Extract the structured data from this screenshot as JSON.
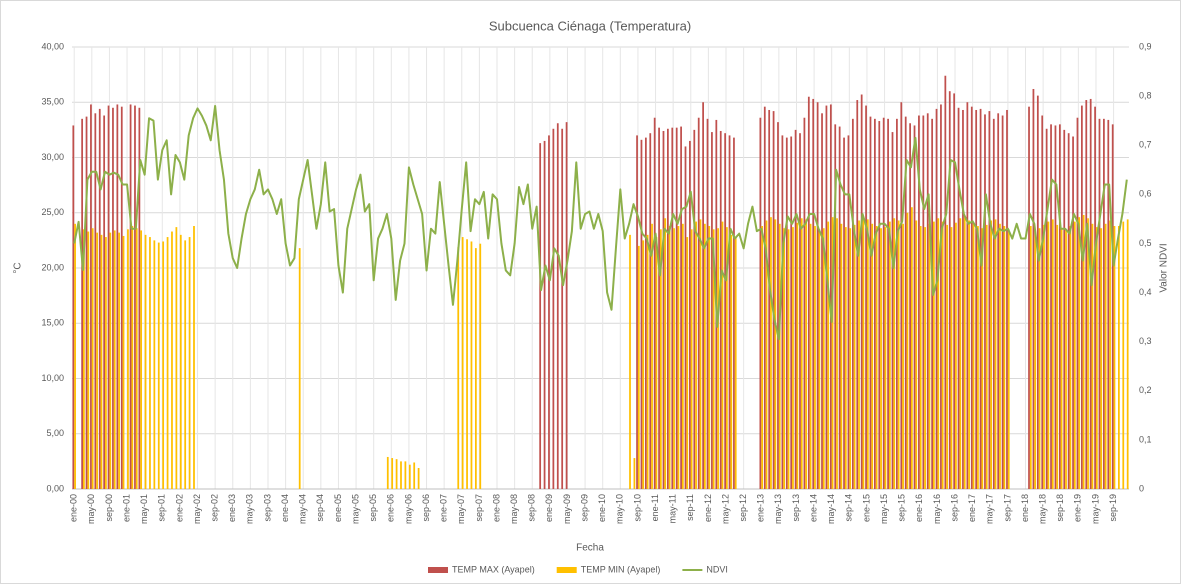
{
  "chart_data": {
    "type": "bar",
    "title": "Subcuenca Ciénaga (Temperatura)",
    "x_label": "Fecha",
    "y_label": "°C",
    "y2_label": "Valor NDVI",
    "categories": [
      "ene-00",
      null,
      null,
      null,
      "may-00",
      null,
      null,
      null,
      "sep-00",
      null,
      null,
      null,
      "ene-01",
      null,
      null,
      null,
      "may-01",
      null,
      null,
      null,
      "sep-01",
      null,
      null,
      null,
      "ene-02",
      null,
      null,
      null,
      "may-02",
      null,
      null,
      null,
      "sep-02",
      null,
      null,
      null,
      "ene-03",
      null,
      null,
      null,
      "may-03",
      null,
      null,
      null,
      "sep-03",
      null,
      null,
      null,
      "ene-04",
      null,
      null,
      null,
      "may-04",
      null,
      null,
      null,
      "sep-04",
      null,
      null,
      null,
      "ene-05",
      null,
      null,
      null,
      "may-05",
      null,
      null,
      null,
      "sep-05",
      null,
      null,
      null,
      "ene-06",
      null,
      null,
      null,
      "may-06",
      null,
      null,
      null,
      "sep-06",
      null,
      null,
      null,
      "ene-07",
      null,
      null,
      null,
      "may-07",
      null,
      null,
      null,
      "sep-07",
      null,
      null,
      null,
      "ene-08",
      null,
      null,
      null,
      "may-08",
      null,
      null,
      null,
      "sep-08",
      null,
      null,
      null,
      "ene-09",
      null,
      null,
      null,
      "may-09",
      null,
      null,
      null,
      "sep-09",
      null,
      null,
      null,
      "ene-10",
      null,
      null,
      null,
      "may-10",
      null,
      null,
      null,
      "sep-10",
      null,
      null,
      null,
      "ene-11",
      null,
      null,
      null,
      "may-11",
      null,
      null,
      null,
      "sep-11",
      null,
      null,
      null,
      "ene-12",
      null,
      null,
      null,
      "may-12",
      null,
      null,
      null,
      "sep-12",
      null,
      null,
      null,
      "ene-13",
      null,
      null,
      null,
      "may-13",
      null,
      null,
      null,
      "sep-13",
      null,
      null,
      null,
      "ene-14",
      null,
      null,
      null,
      "may-14",
      null,
      null,
      null,
      "sep-14",
      null,
      null,
      null,
      "ene-15",
      null,
      null,
      null,
      "may-15",
      null,
      null,
      null,
      "sep-15",
      null,
      null,
      null,
      "ene-16",
      null,
      null,
      null,
      "may-16",
      null,
      null,
      null,
      "sep-16",
      null,
      null,
      null,
      "ene-17",
      null,
      null,
      null,
      "may-17",
      null,
      null,
      null,
      "sep-17",
      null,
      null,
      null,
      "ene-18",
      null,
      null,
      null,
      "may-18",
      null,
      null,
      null,
      "sep-18",
      null,
      null,
      null,
      "ene-19",
      null,
      null,
      null,
      "may-19",
      null,
      null,
      null,
      "sep-19",
      null,
      null,
      null
    ],
    "series": [
      {
        "name": "TEMP MAX (Ayapel)",
        "color": "#c0504d",
        "values": [
          32.9,
          null,
          33.5,
          33.7,
          34.8,
          34.0,
          34.4,
          33.8,
          34.7,
          34.5,
          34.8,
          34.6,
          null,
          34.8,
          34.7,
          34.5,
          null,
          null,
          null,
          null,
          null,
          null,
          null,
          null,
          null,
          null,
          null,
          null,
          null,
          null,
          null,
          null,
          null,
          null,
          null,
          null,
          null,
          null,
          null,
          null,
          null,
          null,
          null,
          null,
          null,
          null,
          null,
          null,
          null,
          null,
          null,
          null,
          null,
          null,
          null,
          null,
          null,
          null,
          null,
          null,
          null,
          null,
          null,
          null,
          null,
          null,
          null,
          null,
          null,
          null,
          null,
          null,
          null,
          null,
          null,
          null,
          null,
          null,
          null,
          null,
          null,
          null,
          null,
          null,
          null,
          null,
          null,
          null,
          null,
          null,
          null,
          null,
          null,
          null,
          null,
          null,
          null,
          null,
          null,
          null,
          null,
          null,
          null,
          null,
          null,
          null,
          31.3,
          31.5,
          32.0,
          32.6,
          33.1,
          32.6,
          33.2,
          null,
          null,
          null,
          null,
          null,
          null,
          null,
          null,
          null,
          null,
          null,
          null,
          null,
          null,
          null,
          32.0,
          31.6,
          31.8,
          32.2,
          33.6,
          32.7,
          32.4,
          32.6,
          32.7,
          32.7,
          32.8,
          31.0,
          31.5,
          32.5,
          33.6,
          35.0,
          33.5,
          32.3,
          33.4,
          32.4,
          32.2,
          32.0,
          31.8,
          null,
          null,
          null,
          null,
          null,
          33.6,
          34.6,
          34.3,
          34.2,
          33.2,
          32.0,
          31.8,
          31.9,
          32.5,
          32.2,
          33.6,
          35.5,
          35.3,
          35.0,
          34.0,
          34.7,
          34.8,
          33.0,
          32.8,
          31.8,
          32.0,
          33.5,
          35.2,
          35.7,
          34.7,
          33.7,
          33.5,
          33.3,
          33.6,
          33.5,
          32.3,
          33.5,
          35.0,
          33.7,
          33.1,
          32.9,
          33.8,
          33.8,
          34.0,
          33.5,
          34.4,
          34.8,
          37.4,
          36.0,
          35.8,
          34.5,
          34.3,
          35.0,
          34.6,
          34.3,
          34.4,
          33.9,
          34.2,
          33.5,
          34.0,
          33.8,
          34.3,
          null,
          null,
          null,
          null,
          34.6,
          36.2,
          35.6,
          33.8,
          32.6,
          33.0,
          32.9,
          33.0,
          32.5,
          32.2,
          31.9,
          33.6,
          34.7,
          35.2,
          35.3,
          34.6,
          33.5,
          33.5,
          33.4,
          33.0,
          null,
          null,
          null
        ]
      },
      {
        "name": "TEMP MIN (Ayapel)",
        "color": "#ffc000",
        "values": [
          24.0,
          null,
          23.5,
          23.3,
          23.6,
          23.2,
          23.0,
          22.8,
          23.2,
          23.4,
          23.2,
          22.9,
          23.5,
          23.8,
          23.6,
          23.4,
          23.0,
          22.8,
          22.5,
          22.3,
          22.4,
          22.8,
          23.3,
          23.7,
          23.0,
          22.5,
          22.8,
          23.8,
          null,
          null,
          null,
          null,
          null,
          null,
          null,
          null,
          null,
          null,
          null,
          null,
          null,
          null,
          null,
          null,
          null,
          null,
          null,
          null,
          null,
          null,
          null,
          21.8,
          null,
          null,
          null,
          null,
          null,
          null,
          null,
          null,
          null,
          null,
          null,
          null,
          null,
          null,
          null,
          null,
          null,
          null,
          null,
          2.9,
          2.8,
          2.7,
          2.5,
          2.5,
          2.2,
          2.4,
          1.9,
          null,
          null,
          null,
          null,
          null,
          null,
          null,
          null,
          21.9,
          22.8,
          22.6,
          22.4,
          21.8,
          22.2,
          null,
          null,
          null,
          null,
          null,
          null,
          null,
          null,
          null,
          null,
          null,
          null,
          null,
          null,
          null,
          null,
          null,
          null,
          null,
          null,
          null,
          null,
          null,
          null,
          null,
          null,
          null,
          null,
          null,
          null,
          null,
          null,
          null,
          23.0,
          2.8,
          22.0,
          22.5,
          23.0,
          24.0,
          22.8,
          23.5,
          24.5,
          23.8,
          23.6,
          23.8,
          24.0,
          22.8,
          23.5,
          24.2,
          24.4,
          24.0,
          23.8,
          23.5,
          23.6,
          24.2,
          23.7,
          23.0,
          22.8,
          null,
          null,
          null,
          null,
          null,
          23.8,
          24.3,
          24.6,
          24.4,
          24.0,
          23.6,
          23.5,
          23.7,
          24.1,
          24.5,
          24.4,
          24.0,
          23.8,
          23.5,
          23.6,
          24.2,
          24.6,
          24.5,
          24.0,
          23.7,
          23.6,
          23.9,
          24.3,
          24.6,
          24.4,
          24.0,
          23.8,
          23.6,
          23.7,
          24.2,
          24.5,
          24.3,
          24.0,
          25.0,
          25.5,
          24.3,
          23.8,
          23.7,
          24.0,
          24.2,
          24.5,
          24.2,
          23.9,
          23.7,
          24.1,
          24.5,
          24.6,
          24.3,
          24.0,
          23.8,
          23.6,
          23.9,
          24.3,
          24.4,
          24.0,
          23.8,
          23.5,
          null,
          null,
          null,
          null,
          23.8,
          23.4,
          23.6,
          23.9,
          24.2,
          24.4,
          23.9,
          23.6,
          23.5,
          23.8,
          24.2,
          24.6,
          24.8,
          24.5,
          24.0,
          23.7,
          23.6,
          24.0,
          24.3,
          23.8,
          23.8,
          24.2,
          24.4
        ]
      },
      {
        "name": "NDVI",
        "color": "#8db04a",
        "type": "line",
        "axis": "y2",
        "values": [
          0.5,
          0.544,
          0.446,
          0.63,
          0.646,
          0.646,
          0.61,
          0.646,
          0.64,
          0.644,
          0.64,
          0.62,
          0.62,
          0.53,
          0.53,
          0.67,
          0.64,
          0.755,
          0.75,
          0.63,
          0.69,
          0.71,
          0.6,
          0.68,
          0.665,
          0.63,
          0.72,
          0.755,
          0.775,
          0.76,
          0.74,
          0.71,
          0.78,
          0.69,
          0.63,
          0.52,
          0.47,
          0.45,
          0.51,
          0.56,
          0.59,
          0.61,
          0.65,
          0.6,
          0.61,
          0.59,
          0.56,
          0.59,
          0.5,
          0.455,
          0.47,
          0.59,
          0.63,
          0.67,
          0.6,
          0.53,
          0.58,
          0.665,
          0.565,
          0.57,
          0.455,
          0.4,
          0.53,
          0.57,
          0.61,
          0.64,
          0.565,
          0.58,
          0.425,
          0.51,
          0.53,
          0.56,
          0.51,
          0.385,
          0.465,
          0.5,
          0.655,
          0.62,
          0.59,
          0.56,
          0.445,
          0.53,
          0.52,
          0.625,
          0.54,
          0.455,
          0.375,
          0.465,
          0.57,
          0.665,
          0.525,
          0.59,
          0.58,
          0.605,
          0.51,
          0.6,
          0.59,
          0.5,
          0.445,
          0.435,
          0.5,
          0.615,
          0.58,
          0.62,
          0.53,
          0.575,
          0.405,
          0.455,
          0.425,
          0.49,
          0.475,
          0.415,
          0.465,
          0.525,
          0.665,
          0.53,
          0.56,
          0.565,
          0.53,
          0.56,
          0.525,
          0.4,
          0.365,
          0.49,
          0.61,
          0.51,
          0.54,
          0.58,
          0.555,
          0.52,
          0.51,
          0.475,
          0.52,
          0.435,
          0.53,
          0.52,
          0.56,
          0.54,
          0.57,
          0.575,
          0.605,
          0.525,
          0.51,
          0.49,
          0.51,
          0.51,
          0.33,
          0.445,
          0.425,
          0.53,
          0.51,
          0.52,
          0.49,
          0.54,
          0.575,
          0.525,
          0.53,
          0.49,
          0.405,
          0.345,
          0.305,
          0.5,
          0.555,
          0.54,
          0.56,
          0.53,
          0.54,
          0.56,
          0.56,
          0.53,
          0.51,
          0.425,
          0.34,
          0.65,
          0.62,
          0.6,
          0.6,
          0.53,
          0.475,
          0.56,
          0.53,
          0.475,
          0.52,
          0.54,
          0.54,
          0.53,
          0.45,
          0.525,
          0.545,
          0.67,
          0.655,
          0.715,
          0.61,
          0.57,
          0.6,
          0.395,
          0.425,
          0.53,
          0.56,
          0.67,
          0.665,
          0.61,
          0.56,
          0.54,
          0.545,
          0.53,
          0.455,
          0.6,
          0.54,
          0.51,
          0.53,
          0.525,
          0.53,
          0.51,
          0.54,
          0.51,
          0.51,
          0.56,
          0.54,
          0.465,
          0.51,
          0.57,
          0.63,
          0.62,
          0.53,
          0.53,
          0.52,
          0.56,
          0.54,
          0.465,
          0.54,
          0.415,
          0.5,
          0.56,
          0.62,
          0.62,
          0.455,
          0.51,
          0.56,
          0.63
        ]
      }
    ],
    "ylim": [
      0,
      40
    ],
    "yticks": [
      {
        "value": 0,
        "label": "0,00"
      },
      {
        "value": 5,
        "label": "5,00"
      },
      {
        "value": 10,
        "label": "10,00"
      },
      {
        "value": 15,
        "label": "15,00"
      },
      {
        "value": 20,
        "label": "20,00"
      },
      {
        "value": 25,
        "label": "25,00"
      },
      {
        "value": 30,
        "label": "30,00"
      },
      {
        "value": 35,
        "label": "35,00"
      },
      {
        "value": 40,
        "label": "40,00"
      }
    ],
    "y2lim": [
      0,
      0.9
    ],
    "y2ticks": [
      0,
      {
        "value": 0.1,
        "label": "0,1"
      },
      {
        "value": 0.2,
        "label": "0,2"
      },
      {
        "value": 0.3,
        "label": "0,3"
      },
      {
        "value": 0.4,
        "label": "0,4"
      },
      {
        "value": 0.5,
        "label": "0,5"
      },
      {
        "value": 0.6,
        "label": "0,6"
      },
      {
        "value": 0.7,
        "label": "0,7"
      },
      {
        "value": 0.8,
        "label": "0,8"
      },
      {
        "value": 0.9,
        "label": "0,9"
      }
    ],
    "grid": true,
    "legend": "bottom"
  }
}
